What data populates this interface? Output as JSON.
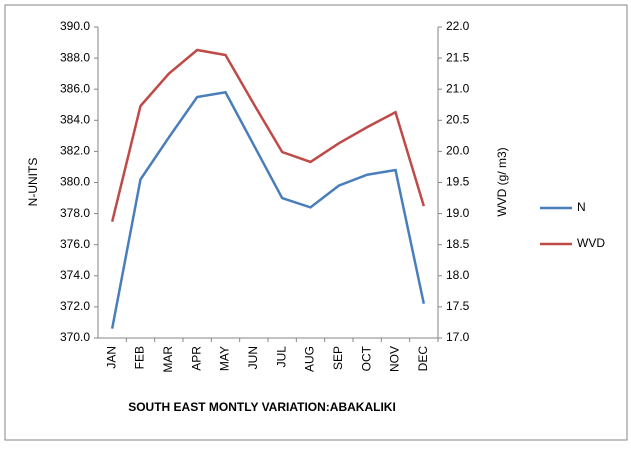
{
  "chart_data": {
    "type": "line",
    "x_label": "SOUTH EAST MONTLY VARIATION:ABAKALIKI",
    "y_label": "N-UNITS",
    "y2_label": "WVD (g/ m3)",
    "categories": [
      "JAN",
      "FEB",
      "MAR",
      "APR",
      "MAY",
      "JUN",
      "JUL",
      "AUG",
      "SEP",
      "OCT",
      "NOV",
      "DEC"
    ],
    "series": [
      {
        "name": "N",
        "color": "#4a7ebb",
        "values": [
          370.6,
          380.2,
          382.9,
          385.5,
          385.8,
          382.4,
          379.0,
          378.4,
          379.8,
          380.5,
          380.8,
          372.2
        ]
      },
      {
        "name": "WVD",
        "color": "#be4b48",
        "axis": "y2",
        "values": [
          18.87,
          20.73,
          21.25,
          21.63,
          21.55,
          20.76,
          19.99,
          19.83,
          20.13,
          20.39,
          20.63,
          19.12
        ]
      }
    ],
    "ylim": [
      370,
      390
    ],
    "yticks": [
      {
        "value": 370,
        "label": "370.0"
      },
      {
        "value": 372,
        "label": "372.0"
      },
      {
        "value": 374,
        "label": "374.0"
      },
      {
        "value": 376,
        "label": "376.0"
      },
      {
        "value": 378,
        "label": "378.0"
      },
      {
        "value": 380,
        "label": "380.0"
      },
      {
        "value": 382,
        "label": "382.0"
      },
      {
        "value": 384,
        "label": "384.0"
      },
      {
        "value": 386,
        "label": "386.0"
      },
      {
        "value": 388,
        "label": "388.0"
      },
      {
        "value": 390,
        "label": "390.0"
      }
    ],
    "y2lim": [
      17,
      22
    ],
    "y2ticks": [
      {
        "value": 17,
        "label": "17.0"
      },
      17.5,
      {
        "value": 18,
        "label": "18.0"
      },
      18.5,
      {
        "value": 19,
        "label": "19.0"
      },
      19.5,
      {
        "value": 20,
        "label": "20.0"
      },
      20.5,
      {
        "value": 21,
        "label": "21.0"
      },
      21.5,
      {
        "value": 22,
        "label": "22.0"
      }
    ],
    "grid": false,
    "legend_position": "right"
  }
}
